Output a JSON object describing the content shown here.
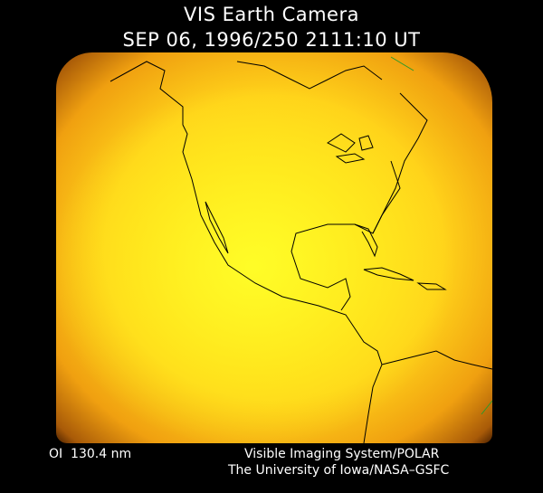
{
  "header": {
    "title": "VIS Earth Camera",
    "timestamp": "SEP 06, 1996/250 2111:10 UT"
  },
  "footer": {
    "wavelength": "OI  130.4 nm",
    "instrument": "Visible Imaging System/POLAR",
    "credit": "The University of Iowa/NASA–GSFC"
  },
  "colors": {
    "emission_bright": "#ffee20",
    "emission_mid": "#f0a010",
    "limb": "#4a2000",
    "coastline": "#000000"
  }
}
